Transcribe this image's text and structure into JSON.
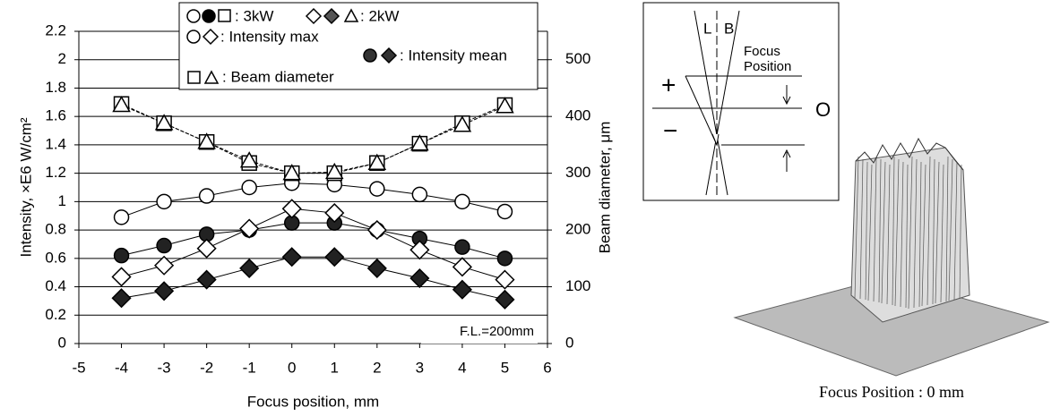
{
  "chart_data": {
    "type": "line",
    "x": [
      -4,
      -3,
      -2,
      -1,
      0,
      1,
      2,
      3,
      4,
      5
    ],
    "xlim": [
      -5,
      6
    ],
    "xticks": [
      -5,
      -4,
      -3,
      -2,
      -1,
      0,
      1,
      2,
      3,
      4,
      5,
      6
    ],
    "ylim": [
      0,
      2.2
    ],
    "yticks": [
      0,
      0.2,
      0.4,
      0.6,
      0.8,
      1,
      1.2,
      1.4,
      1.6,
      1.8,
      2,
      2.2
    ],
    "y2lim": [
      0,
      550
    ],
    "y2ticks": [
      0,
      100,
      200,
      300,
      400,
      500
    ],
    "xlabel": "Focus position, mm",
    "ylabel": "Intensity, ×E6 W/cm²",
    "y2label": "Beam diameter, μm",
    "grid": true,
    "legend": [
      ": 3kW",
      ": 2kW",
      ": Intensity max",
      ": Intensity mean",
      ": Beam diameter"
    ],
    "annotation": "F.L.=200mm",
    "series": [
      {
        "marker": "circle",
        "filled": false,
        "color": "#000000",
        "values": [
          0.89,
          1.0,
          1.04,
          1.1,
          1.13,
          1.12,
          1.09,
          1.05,
          1.0,
          0.93
        ]
      },
      {
        "marker": "circle",
        "filled": true,
        "color": "#000000",
        "values": [
          0.62,
          0.69,
          0.77,
          0.8,
          0.85,
          0.85,
          0.8,
          0.74,
          0.68,
          0.6
        ]
      },
      {
        "marker": "diamond",
        "filled": false,
        "color": "#000000",
        "values": [
          0.47,
          0.55,
          0.67,
          0.81,
          0.95,
          0.92,
          0.8,
          0.66,
          0.54,
          0.45
        ]
      },
      {
        "marker": "diamond",
        "filled": true,
        "color": "#000000",
        "values": [
          0.32,
          0.37,
          0.45,
          0.53,
          0.61,
          0.61,
          0.53,
          0.46,
          0.38,
          0.31
        ]
      },
      {
        "marker": "square",
        "filled": false,
        "color": "#000000",
        "axis": "y2",
        "values": [
          422,
          388,
          355,
          318,
          300,
          300,
          318,
          352,
          388,
          420
        ]
      },
      {
        "marker": "triangle",
        "filled": false,
        "color": "#000000",
        "axis": "y2",
        "values": [
          420,
          388,
          355,
          322,
          300,
          302,
          318,
          352,
          385,
          418
        ]
      }
    ]
  },
  "diagram": {
    "labels": [
      "L",
      "B",
      "Focus",
      "Position",
      "+",
      "−",
      "O"
    ]
  },
  "caption": "Focus Position : 0 mm"
}
